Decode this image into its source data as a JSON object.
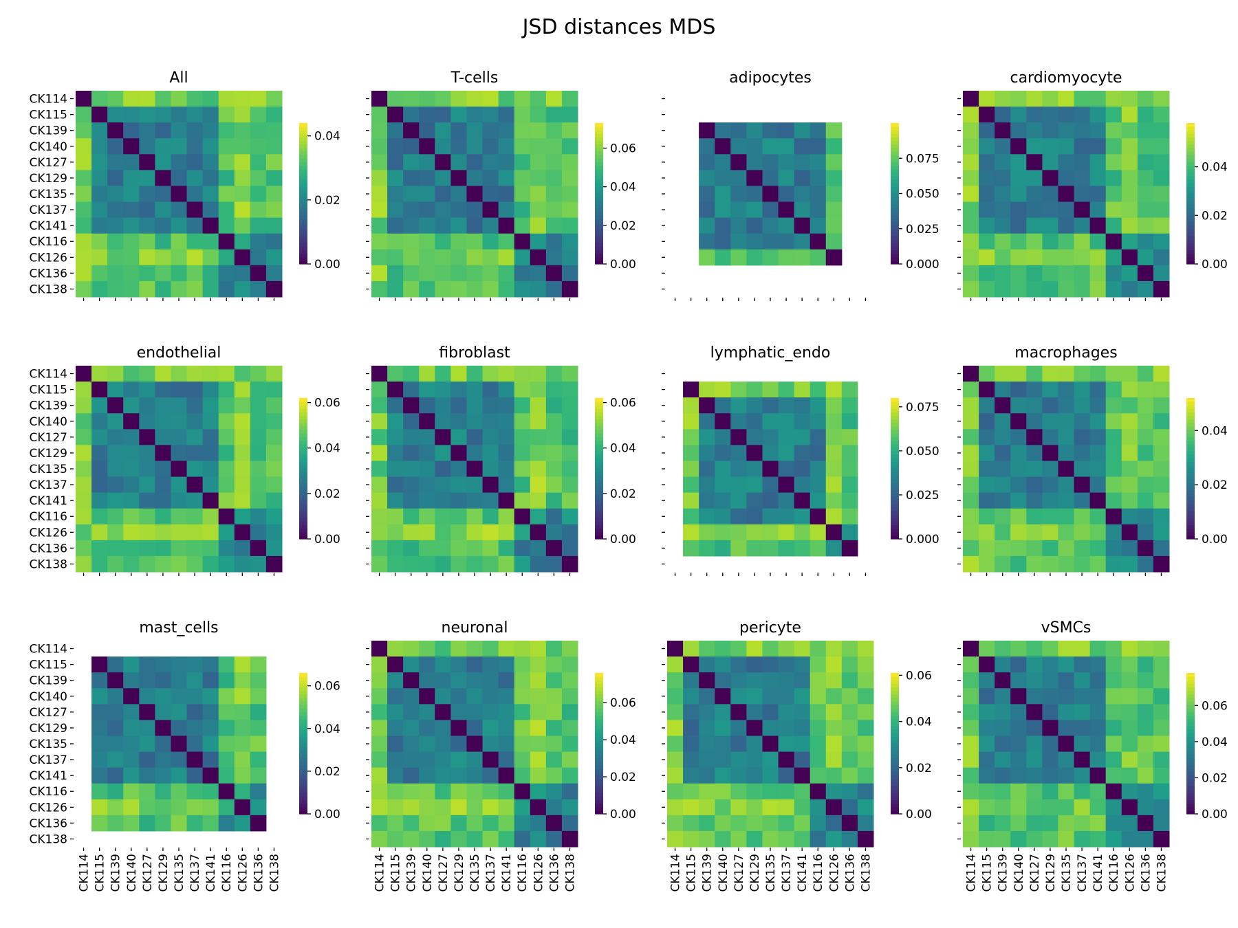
{
  "suptitle": "JSD distances MDS",
  "chart_data": {
    "type": "heatmap",
    "colormap": "viridis",
    "samples": [
      "CK114",
      "CK115",
      "CK139",
      "CK140",
      "CK127",
      "CK129",
      "CK135",
      "CK137",
      "CK141",
      "CK116",
      "CK126",
      "CK136",
      "CK138"
    ],
    "panels": [
      {
        "title": "All",
        "present": [
          0,
          1,
          2,
          3,
          4,
          5,
          6,
          7,
          8,
          9,
          10,
          11,
          12
        ],
        "vmax": 0.044,
        "ticks": [
          {
            "v": 0,
            "label": "0.00"
          },
          {
            "v": 0.02,
            "label": "0.02"
          },
          {
            "v": 0.04,
            "label": "0.04"
          }
        ],
        "show_ylabels": true,
        "show_xlabels": false
      },
      {
        "title": "T-cells",
        "present": [
          0,
          1,
          2,
          3,
          4,
          5,
          6,
          7,
          8,
          9,
          10,
          11,
          12
        ],
        "vmax": 0.073,
        "ticks": [
          {
            "v": 0,
            "label": "0.00"
          },
          {
            "v": 0.02,
            "label": "0.02"
          },
          {
            "v": 0.04,
            "label": "0.04"
          },
          {
            "v": 0.06,
            "label": "0.06"
          }
        ],
        "show_ylabels": false,
        "show_xlabels": false
      },
      {
        "title": "adipocytes",
        "present": [
          1,
          2,
          3,
          4,
          5,
          6,
          7,
          8,
          9
        ],
        "vmax": 0.1,
        "ticks": [
          {
            "v": 0,
            "label": "0.000"
          },
          {
            "v": 0.025,
            "label": "0.025"
          },
          {
            "v": 0.05,
            "label": "0.050"
          },
          {
            "v": 0.075,
            "label": "0.075"
          }
        ],
        "show_ylabels": false,
        "show_xlabels": false
      },
      {
        "title": "cardiomyocyte",
        "present": [
          0,
          1,
          2,
          3,
          4,
          5,
          6,
          7,
          8,
          9,
          10,
          11,
          12
        ],
        "vmax": 0.058,
        "ticks": [
          {
            "v": 0,
            "label": "0.00"
          },
          {
            "v": 0.02,
            "label": "0.02"
          },
          {
            "v": 0.04,
            "label": "0.04"
          }
        ],
        "show_ylabels": false,
        "show_xlabels": false
      },
      {
        "title": "endothelial",
        "present": [
          0,
          1,
          2,
          3,
          4,
          5,
          6,
          7,
          8,
          9,
          10,
          11,
          12
        ],
        "vmax": 0.062,
        "ticks": [
          {
            "v": 0,
            "label": "0.00"
          },
          {
            "v": 0.02,
            "label": "0.02"
          },
          {
            "v": 0.04,
            "label": "0.04"
          },
          {
            "v": 0.06,
            "label": "0.06"
          }
        ],
        "show_ylabels": true,
        "show_xlabels": false
      },
      {
        "title": "fibroblast",
        "present": [
          0,
          1,
          2,
          3,
          4,
          5,
          6,
          7,
          8,
          9,
          10,
          11,
          12
        ],
        "vmax": 0.062,
        "ticks": [
          {
            "v": 0,
            "label": "0.00"
          },
          {
            "v": 0.02,
            "label": "0.02"
          },
          {
            "v": 0.04,
            "label": "0.04"
          },
          {
            "v": 0.06,
            "label": "0.06"
          }
        ],
        "show_ylabels": false,
        "show_xlabels": false
      },
      {
        "title": "lymphatic_endo",
        "present": [
          0,
          1,
          2,
          3,
          4,
          5,
          6,
          7,
          8,
          10,
          12
        ],
        "vmax": 0.08,
        "ticks": [
          {
            "v": 0,
            "label": "0.000"
          },
          {
            "v": 0.025,
            "label": "0.025"
          },
          {
            "v": 0.05,
            "label": "0.050"
          },
          {
            "v": 0.075,
            "label": "0.075"
          }
        ],
        "show_ylabels": false,
        "show_xlabels": false
      },
      {
        "title": "macrophages",
        "present": [
          0,
          1,
          2,
          3,
          4,
          5,
          6,
          7,
          8,
          9,
          10,
          11,
          12
        ],
        "vmax": 0.052,
        "ticks": [
          {
            "v": 0,
            "label": "0.00"
          },
          {
            "v": 0.02,
            "label": "0.02"
          },
          {
            "v": 0.04,
            "label": "0.04"
          }
        ],
        "show_ylabels": false,
        "show_xlabels": false
      },
      {
        "title": "mast_cells",
        "present": [
          1,
          2,
          3,
          4,
          5,
          6,
          7,
          8,
          9,
          10,
          12
        ],
        "vmax": 0.066,
        "ticks": [
          {
            "v": 0,
            "label": "0.00"
          },
          {
            "v": 0.02,
            "label": "0.02"
          },
          {
            "v": 0.04,
            "label": "0.04"
          },
          {
            "v": 0.06,
            "label": "0.06"
          }
        ],
        "show_ylabels": true,
        "show_xlabels": true
      },
      {
        "title": "neuronal",
        "present": [
          0,
          1,
          2,
          3,
          4,
          5,
          6,
          7,
          8,
          9,
          10,
          11,
          12
        ],
        "vmax": 0.076,
        "ticks": [
          {
            "v": 0,
            "label": "0.00"
          },
          {
            "v": 0.02,
            "label": "0.02"
          },
          {
            "v": 0.04,
            "label": "0.04"
          },
          {
            "v": 0.06,
            "label": "0.06"
          }
        ],
        "show_ylabels": false,
        "show_xlabels": true
      },
      {
        "title": "pericyte",
        "present": [
          0,
          1,
          2,
          3,
          4,
          5,
          6,
          7,
          8,
          9,
          10,
          11,
          12
        ],
        "vmax": 0.061,
        "ticks": [
          {
            "v": 0,
            "label": "0.00"
          },
          {
            "v": 0.02,
            "label": "0.02"
          },
          {
            "v": 0.04,
            "label": "0.04"
          },
          {
            "v": 0.06,
            "label": "0.06"
          }
        ],
        "show_ylabels": false,
        "show_xlabels": true
      },
      {
        "title": "vSMCs",
        "present": [
          0,
          1,
          2,
          3,
          4,
          5,
          6,
          7,
          8,
          9,
          10,
          11,
          12
        ],
        "vmax": 0.078,
        "ticks": [
          {
            "v": 0,
            "label": "0.00"
          },
          {
            "v": 0.02,
            "label": "0.02"
          },
          {
            "v": 0.04,
            "label": "0.04"
          },
          {
            "v": 0.06,
            "label": "0.06"
          }
        ],
        "show_ylabels": false,
        "show_xlabels": true
      }
    ]
  }
}
